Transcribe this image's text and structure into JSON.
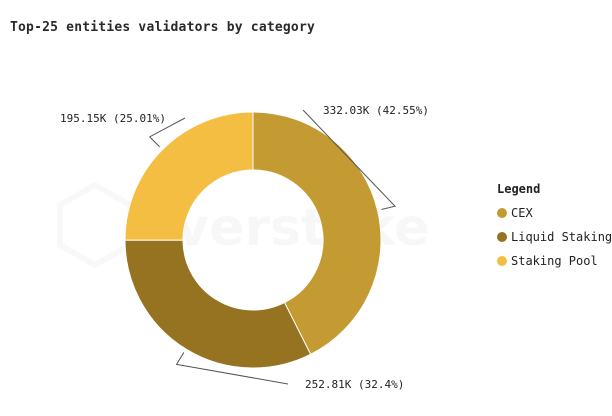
{
  "title": "Top-25 entities validators by category",
  "colors": {
    "CEX": "#c49a32",
    "Liquid Staking": "#957321",
    "Staking Pool": "#f4be43"
  },
  "legend": {
    "title": "Legend",
    "items": [
      {
        "label": "CEX",
        "color": "#c49a32"
      },
      {
        "label": "Liquid Staking",
        "color": "#957321"
      },
      {
        "label": "Staking Pool",
        "color": "#f4be43"
      }
    ]
  },
  "chart_data": {
    "type": "pie",
    "donut": true,
    "title": "Top-25 entities validators by category",
    "slices": [
      {
        "name": "CEX",
        "value": 332030,
        "label": "332.03K (42.55%)",
        "percent": 42.55,
        "color": "#c49a32"
      },
      {
        "name": "Liquid Staking",
        "value": 252810,
        "label": "252.81K (32.4%)",
        "percent": 32.4,
        "color": "#957321"
      },
      {
        "name": "Staking Pool",
        "value": 195150,
        "label": "195.15K (25.01%)",
        "percent": 25.01,
        "color": "#f4be43"
      }
    ],
    "legend_position": "right"
  }
}
